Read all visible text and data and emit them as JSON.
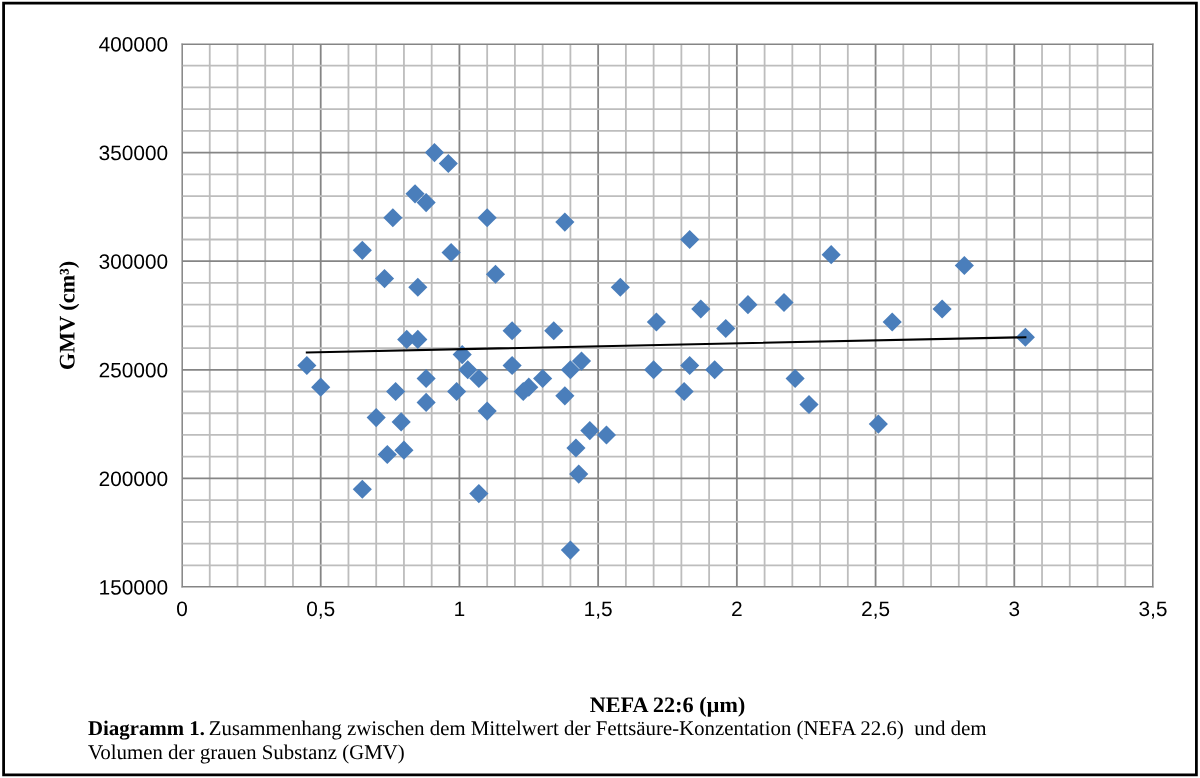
{
  "chart_data": {
    "type": "scatter",
    "xlabel": "NEFA 22:6 (µm)",
    "ylabel": "GMV (cm³)",
    "annotations": [
      "Diagramm 1.",
      "Zusammenhang zwischen dem Mittelwert der Fettsäure-Konzentation (NEFA 22.6)  und dem Volumen der grauen Substanz (GMV)"
    ],
    "xlim": [
      0,
      3.5
    ],
    "ylim": [
      150000,
      400000
    ],
    "xticks": [
      0,
      {
        "value": 0.5,
        "label": "0,5"
      },
      1,
      {
        "value": 1.5,
        "label": "1,5"
      },
      2,
      {
        "value": 2.5,
        "label": "2,5"
      },
      3,
      {
        "value": 3.5,
        "label": "3,5"
      }
    ],
    "yticks": [
      150000,
      200000,
      250000,
      300000,
      350000,
      400000
    ],
    "grid": true,
    "legend": false,
    "series": [
      {
        "marker": "diamond",
        "color": "#4a7ebb",
        "x": [
          0.45,
          0.5,
          0.65,
          0.65,
          0.7,
          0.73,
          0.74,
          0.76,
          0.77,
          0.79,
          0.8,
          0.81,
          0.85,
          0.84,
          0.88,
          0.85,
          0.88,
          0.88,
          0.91,
          0.96,
          0.97,
          0.99,
          1.01,
          1.03,
          1.07,
          1.07,
          1.1,
          1.1,
          1.13,
          1.19,
          1.19,
          1.25,
          1.23,
          1.3,
          1.34,
          1.38,
          1.38,
          1.4,
          1.44,
          1.47,
          1.42,
          1.43,
          1.4,
          1.58,
          1.71,
          1.7,
          1.53,
          1.83,
          1.87,
          1.83,
          1.81,
          1.92,
          1.96,
          2.04,
          2.17,
          2.21,
          2.26,
          2.34,
          2.51,
          2.56,
          2.74,
          2.82,
          3.04
        ],
        "values": [
          252000,
          242000,
          195000,
          305000,
          228000,
          292000,
          211000,
          320000,
          240000,
          226000,
          213000,
          264000,
          264000,
          331000,
          327000,
          288000,
          246000,
          235000,
          350000,
          345000,
          304000,
          240000,
          257000,
          250000,
          246000,
          193000,
          320000,
          231000,
          294000,
          268000,
          252000,
          242000,
          240000,
          246000,
          268000,
          318000,
          238000,
          250000,
          254000,
          222000,
          214000,
          202000,
          167000,
          288000,
          272000,
          250000,
          220000,
          310000,
          278000,
          252000,
          240000,
          250000,
          269000,
          280000,
          281000,
          246000,
          234000,
          303000,
          225000,
          272000,
          278000,
          298000,
          265000
        ]
      },
      {
        "type": "line",
        "marker": "none",
        "line_style": "solid",
        "color": "#000000",
        "x": [
          0.45,
          3.04
        ],
        "values": [
          258000,
          265000
        ]
      }
    ]
  }
}
